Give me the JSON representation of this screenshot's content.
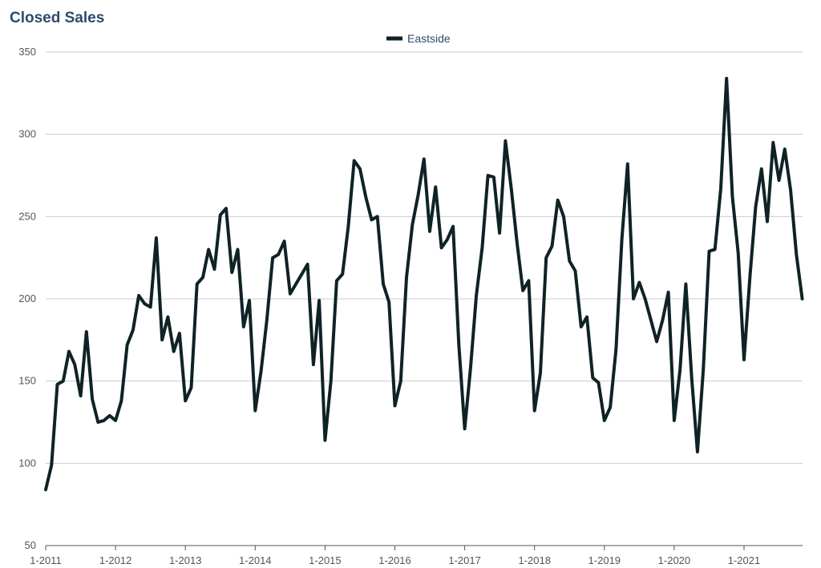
{
  "chart_data": {
    "type": "line",
    "title": "Closed Sales",
    "xlabel": "",
    "ylabel": "",
    "ylim": [
      50,
      350
    ],
    "yticks": [
      50,
      100,
      150,
      200,
      250,
      300,
      350
    ],
    "xticks": [
      "1-2011",
      "1-2012",
      "1-2013",
      "1-2014",
      "1-2015",
      "1-2016",
      "1-2017",
      "1-2018",
      "1-2019",
      "1-2020",
      "1-2021"
    ],
    "grid": true,
    "legend": {
      "position": "top-center"
    },
    "colors": {
      "title": "#2d4a6b",
      "line": "#0f2326",
      "grid": "#cccccc",
      "legend_text": "#2d4a6b"
    },
    "x": [
      "1-2011",
      "2-2011",
      "3-2011",
      "4-2011",
      "5-2011",
      "6-2011",
      "7-2011",
      "8-2011",
      "9-2011",
      "10-2011",
      "11-2011",
      "12-2011",
      "1-2012",
      "2-2012",
      "3-2012",
      "4-2012",
      "5-2012",
      "6-2012",
      "7-2012",
      "8-2012",
      "9-2012",
      "10-2012",
      "11-2012",
      "12-2012",
      "1-2013",
      "2-2013",
      "3-2013",
      "4-2013",
      "5-2013",
      "6-2013",
      "7-2013",
      "8-2013",
      "9-2013",
      "10-2013",
      "11-2013",
      "12-2013",
      "1-2014",
      "2-2014",
      "3-2014",
      "4-2014",
      "5-2014",
      "6-2014",
      "7-2014",
      "8-2014",
      "9-2014",
      "10-2014",
      "11-2014",
      "12-2014",
      "1-2015",
      "2-2015",
      "3-2015",
      "4-2015",
      "5-2015",
      "6-2015",
      "7-2015",
      "8-2015",
      "9-2015",
      "10-2015",
      "11-2015",
      "12-2015",
      "1-2016",
      "2-2016",
      "3-2016",
      "4-2016",
      "5-2016",
      "6-2016",
      "7-2016",
      "8-2016",
      "9-2016",
      "10-2016",
      "11-2016",
      "12-2016",
      "1-2017",
      "2-2017",
      "3-2017",
      "4-2017",
      "5-2017",
      "6-2017",
      "7-2017",
      "8-2017",
      "9-2017",
      "10-2017",
      "11-2017",
      "12-2017",
      "1-2018",
      "2-2018",
      "3-2018",
      "4-2018",
      "5-2018",
      "6-2018",
      "7-2018",
      "8-2018",
      "9-2018",
      "10-2018",
      "11-2018",
      "12-2018",
      "1-2019",
      "2-2019",
      "3-2019",
      "4-2019",
      "5-2019",
      "6-2019",
      "7-2019",
      "8-2019",
      "9-2019",
      "10-2019",
      "11-2019",
      "12-2019",
      "1-2020",
      "2-2020",
      "3-2020",
      "4-2020",
      "5-2020",
      "6-2020",
      "7-2020",
      "8-2020",
      "9-2020",
      "10-2020",
      "11-2020",
      "12-2020",
      "1-2021",
      "2-2021",
      "3-2021",
      "4-2021",
      "5-2021",
      "6-2021",
      "7-2021",
      "8-2021",
      "9-2021",
      "10-2021",
      "11-2021"
    ],
    "series": [
      {
        "name": "Eastside",
        "values": [
          84,
          99,
          148,
          150,
          168,
          160,
          141,
          180,
          139,
          125,
          126,
          129,
          126,
          138,
          172,
          181,
          202,
          197,
          195,
          237,
          175,
          189,
          168,
          179,
          138,
          146,
          209,
          213,
          230,
          218,
          251,
          255,
          216,
          230,
          183,
          199,
          132,
          156,
          187,
          225,
          227,
          235,
          203,
          209,
          215,
          221,
          160,
          199,
          114,
          150,
          211,
          215,
          244,
          284,
          279,
          262,
          248,
          250,
          209,
          198,
          135,
          150,
          213,
          245,
          263,
          285,
          241,
          268,
          231,
          236,
          244,
          172,
          121,
          158,
          202,
          231,
          275,
          274,
          240,
          296,
          267,
          234,
          205,
          211,
          132,
          155,
          225,
          232,
          260,
          250,
          223,
          217,
          183,
          189,
          152,
          149,
          126,
          134,
          169,
          236,
          282,
          200,
          210,
          200,
          187,
          174,
          187,
          204,
          126,
          157,
          209,
          152,
          107,
          157,
          229,
          230,
          267,
          334,
          262,
          228,
          163,
          213,
          256,
          279,
          247,
          295,
          272,
          291,
          266,
          227,
          200
        ]
      }
    ]
  }
}
